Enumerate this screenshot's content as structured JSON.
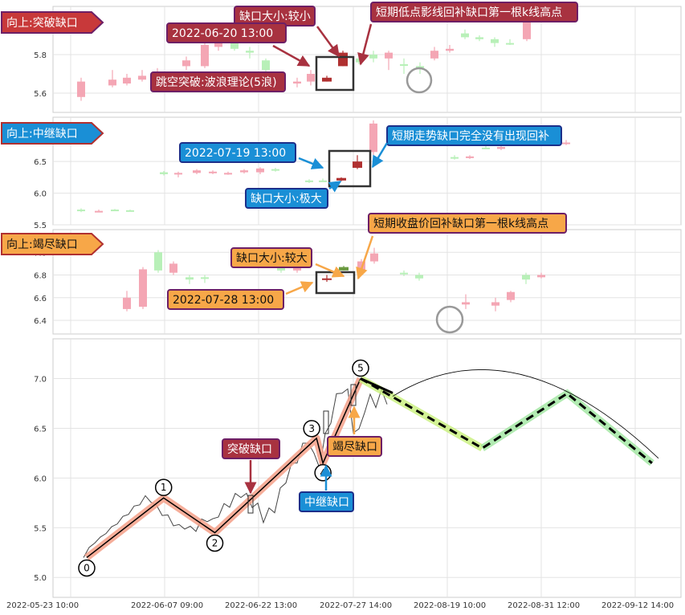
{
  "colors": {
    "up_candle": "#f4a6b4",
    "down_candle": "#b8f0b8",
    "gap_up_candle": "#b03030",
    "gap_down_candle": "#6a9a40",
    "wave_path": "#f4a088",
    "projection_light": "#c8f07a",
    "projection_green": "#9fe69f",
    "price_line": "#444444",
    "breakout_label_bg": "#c8393a",
    "breakout_label_border": "#6d1f66",
    "relay_label_bg": "#1a8fd6",
    "relay_label_border": "#1c2f8a",
    "exhaust_label_bg": "#f7a748",
    "exhaust_label_border": "#6d1f66",
    "annotation_bg_red": "#a83240",
    "annotation_bg_blue": "#1a8fd6",
    "annotation_bg_orange": "#f7a748"
  },
  "chart_data": [
    {
      "type": "candlestick",
      "panel": "breakout",
      "title": "向上:突破缺口",
      "ylim": [
        5.5,
        6.05
      ],
      "yticks": [
        5.6,
        5.8
      ],
      "annotations": {
        "time": "2022-06-20 13:00",
        "gap_size": "缺口大小:较小",
        "rule": "短期低点影线回补缺口第一根k线高点",
        "theory": "跳空突破:波浪理论(5浪)"
      }
    },
    {
      "type": "candlestick",
      "panel": "relay",
      "title": "向上:中继缺口",
      "ylim": [
        5.5,
        7.2
      ],
      "yticks": [
        5.5,
        6.0,
        6.5
      ],
      "annotations": {
        "time": "2022-07-19 13:00",
        "gap_size": "缺口大小:极大",
        "rule": "短期走势缺口完全没有出现回补"
      }
    },
    {
      "type": "candlestick",
      "panel": "exhaustion",
      "title": "向上:竭尽缺口",
      "ylim": [
        6.28,
        7.2
      ],
      "yticks": [
        6.4,
        6.6,
        6.8,
        7.0
      ],
      "annotations": {
        "time": "2022-07-28 13:00",
        "gap_size": "缺口大小:较大",
        "rule": "短期收盘价回补缺口第一根k线高点"
      }
    },
    {
      "type": "line",
      "panel": "main",
      "ylim": [
        4.8,
        7.4
      ],
      "yticks": [
        5.0,
        5.5,
        6.0,
        6.5,
        7.0
      ],
      "xtick_labels": [
        "2022-05-23 10:00",
        "2022-06-07 09:00",
        "2022-06-22 13:00",
        "2022-07-27 14:00",
        "2022-08-19 10:00",
        "2022-08-31 12:00",
        "2022-09-12 14:00"
      ],
      "wave_points": [
        {
          "label": "0",
          "x": 12,
          "y": 5.2
        },
        {
          "label": "1",
          "x": 108,
          "y": 5.8
        },
        {
          "label": "2",
          "x": 172,
          "y": 5.45
        },
        {
          "label": "3",
          "x": 299,
          "y": 6.4
        },
        {
          "label": "4",
          "x": 307,
          "y": 6.15
        },
        {
          "label": "5",
          "x": 354,
          "y": 7.0
        }
      ],
      "projection": [
        {
          "x": 354,
          "y": 7.0
        },
        {
          "x": 506,
          "y": 6.3
        },
        {
          "x": 612,
          "y": 6.85
        },
        {
          "x": 718,
          "y": 6.15
        }
      ],
      "gap_labels": {
        "breakout": "突破缺口",
        "relay": "中继缺口",
        "exhaustion": "竭尽缺口"
      }
    }
  ]
}
